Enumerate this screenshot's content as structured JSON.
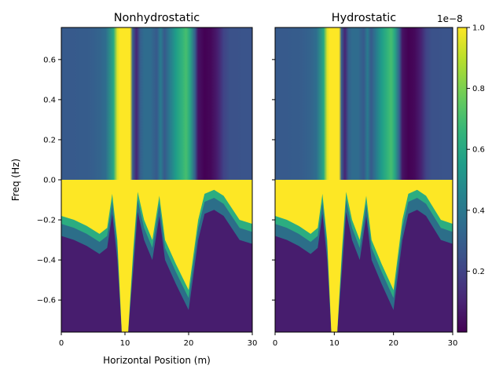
{
  "chart_data": [
    {
      "type": "heatmap",
      "title": "Nonhydrostatic",
      "xlabel": "Horizontal Position (m)",
      "ylabel": "Freq (Hz)",
      "xlim": [
        0,
        30
      ],
      "ylim": [
        -0.76,
        0.76
      ],
      "x_ticks": [
        0,
        10,
        20,
        30
      ],
      "y_ticks": [
        0.6,
        0.4,
        0.2,
        0.0,
        -0.2,
        -0.4,
        -0.6
      ],
      "x_tick_labels": [
        "0",
        "10",
        "20",
        "30"
      ],
      "y_tick_labels": [
        "0.6",
        "0.4",
        "0.2",
        "0.0",
        "−0.2",
        "−0.4",
        "−0.6"
      ],
      "upper_half_column_values": [
        [
          0,
          0.28
        ],
        [
          1,
          0.28
        ],
        [
          2,
          0.28
        ],
        [
          3,
          0.29
        ],
        [
          4,
          0.29
        ],
        [
          5,
          0.3
        ],
        [
          6,
          0.32
        ],
        [
          7,
          0.36
        ],
        [
          8.2,
          0.6
        ],
        [
          8.8,
          0.95
        ],
        [
          9.2,
          1.0
        ],
        [
          10.8,
          1.0
        ],
        [
          11.2,
          0.3
        ],
        [
          11.8,
          0.1
        ],
        [
          12.4,
          0.3
        ],
        [
          13,
          0.35
        ],
        [
          14,
          0.35
        ],
        [
          15,
          0.28
        ],
        [
          15.6,
          0.42
        ],
        [
          16.2,
          0.28
        ],
        [
          17,
          0.4
        ],
        [
          18,
          0.55
        ],
        [
          19,
          0.65
        ],
        [
          19.6,
          0.7
        ],
        [
          20.2,
          0.6
        ],
        [
          21,
          0.3
        ],
        [
          21.5,
          0.05
        ],
        [
          22.5,
          0.0
        ],
        [
          23.5,
          0.02
        ],
        [
          24.5,
          0.08
        ],
        [
          25.5,
          0.2
        ],
        [
          26.5,
          0.25
        ],
        [
          27.5,
          0.25
        ],
        [
          28.5,
          0.26
        ],
        [
          30,
          0.26
        ]
      ],
      "lower_half_saturated_region_boundary": [
        [
          0,
          -0.18
        ],
        [
          2,
          -0.2
        ],
        [
          4,
          -0.23
        ],
        [
          6,
          -0.27
        ],
        [
          7.2,
          -0.24
        ],
        [
          8,
          -0.07
        ],
        [
          8.8,
          -0.3
        ],
        [
          9.5,
          -0.76
        ],
        [
          10.5,
          -0.76
        ],
        [
          11.3,
          -0.35
        ],
        [
          12,
          -0.06
        ],
        [
          13,
          -0.2
        ],
        [
          14.3,
          -0.3
        ],
        [
          15.4,
          -0.08
        ],
        [
          16.3,
          -0.3
        ],
        [
          18,
          -0.42
        ],
        [
          20,
          -0.55
        ],
        [
          21.5,
          -0.2
        ],
        [
          22.5,
          -0.07
        ],
        [
          24,
          -0.05
        ],
        [
          25.5,
          -0.08
        ],
        [
          28,
          -0.2
        ],
        [
          30,
          -0.22
        ]
      ]
    },
    {
      "type": "heatmap",
      "title": "Hydrostatic",
      "xlim": [
        0,
        30
      ],
      "ylim": [
        -0.76,
        0.76
      ],
      "x_ticks": [
        0,
        10,
        20,
        30
      ],
      "x_tick_labels": [
        "0",
        "10",
        "20",
        "30"
      ],
      "shared_y_axis": true,
      "upper_half_column_values": [
        [
          0,
          0.28
        ],
        [
          1,
          0.28
        ],
        [
          2,
          0.28
        ],
        [
          3,
          0.29
        ],
        [
          4,
          0.29
        ],
        [
          5,
          0.3
        ],
        [
          6,
          0.32
        ],
        [
          7,
          0.36
        ],
        [
          8.2,
          0.6
        ],
        [
          8.8,
          0.95
        ],
        [
          9.2,
          1.0
        ],
        [
          10.8,
          1.0
        ],
        [
          11.2,
          0.3
        ],
        [
          11.8,
          0.1
        ],
        [
          12.4,
          0.3
        ],
        [
          13,
          0.35
        ],
        [
          14,
          0.35
        ],
        [
          15,
          0.28
        ],
        [
          15.6,
          0.42
        ],
        [
          16.2,
          0.28
        ],
        [
          17,
          0.4
        ],
        [
          18,
          0.55
        ],
        [
          19,
          0.65
        ],
        [
          19.6,
          0.7
        ],
        [
          20.2,
          0.6
        ],
        [
          21,
          0.3
        ],
        [
          21.5,
          0.05
        ],
        [
          22.5,
          0.0
        ],
        [
          23.5,
          0.02
        ],
        [
          24.5,
          0.08
        ],
        [
          25.5,
          0.2
        ],
        [
          26.5,
          0.25
        ],
        [
          27.5,
          0.25
        ],
        [
          28.5,
          0.26
        ],
        [
          30,
          0.26
        ]
      ],
      "lower_half_saturated_region_boundary": [
        [
          0,
          -0.18
        ],
        [
          2,
          -0.2
        ],
        [
          4,
          -0.23
        ],
        [
          6,
          -0.27
        ],
        [
          7.2,
          -0.24
        ],
        [
          8,
          -0.07
        ],
        [
          8.8,
          -0.3
        ],
        [
          9.5,
          -0.76
        ],
        [
          10.5,
          -0.76
        ],
        [
          11.3,
          -0.35
        ],
        [
          12,
          -0.06
        ],
        [
          13,
          -0.2
        ],
        [
          14.3,
          -0.3
        ],
        [
          15.4,
          -0.08
        ],
        [
          16.3,
          -0.3
        ],
        [
          18,
          -0.42
        ],
        [
          20,
          -0.55
        ],
        [
          21.5,
          -0.2
        ],
        [
          22.5,
          -0.07
        ],
        [
          24,
          -0.05
        ],
        [
          25.5,
          -0.08
        ],
        [
          28,
          -0.2
        ],
        [
          30,
          -0.22
        ]
      ]
    }
  ],
  "colorbar": {
    "colormap": "viridis",
    "range": [
      0,
      1
    ],
    "ticks": [
      0.2,
      0.4,
      0.6,
      0.8,
      1.0
    ],
    "tick_labels": [
      "0.2",
      "0.4",
      "0.6",
      "0.8",
      "1.0"
    ],
    "offset_label": "1e−8"
  }
}
